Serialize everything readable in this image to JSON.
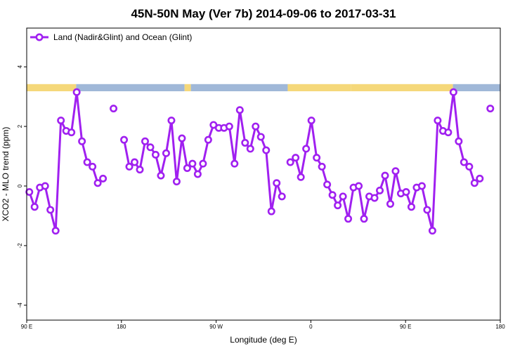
{
  "chart_data": {
    "type": "line",
    "title": "45N-50N May (Ver 7b)   2014-09-06 to 2017-03-31",
    "xlabel": "Longitude (deg E)",
    "ylabel": "XCO2 - MLO trend (ppm)",
    "xlim": [
      90,
      540
    ],
    "ylim": [
      -4.5,
      5.3
    ],
    "x_ticks": [
      {
        "value": 90,
        "label": "90 E"
      },
      {
        "value": 180,
        "label": "180"
      },
      {
        "value": 270,
        "label": "90 W"
      },
      {
        "value": 360,
        "label": "0"
      },
      {
        "value": 450,
        "label": "90 E"
      },
      {
        "value": 540,
        "label": "180"
      }
    ],
    "y_ticks": [
      {
        "value": -4,
        "label": "-4"
      },
      {
        "value": -2,
        "label": "-2"
      },
      {
        "value": 0,
        "label": "0"
      },
      {
        "value": 2,
        "label": "2"
      },
      {
        "value": 4,
        "label": "4"
      }
    ],
    "legend": {
      "position": "top-left",
      "label": "Land (Nadir&Glint) and Ocean (Glint)",
      "color": "#a020f0"
    },
    "colors": {
      "series": "#a020f0",
      "land": "#f5d87a",
      "ocean": "#a0b8d8"
    },
    "land_ocean_band": {
      "y_range": [
        3.18,
        3.42
      ]
    },
    "series": [
      {
        "name": "Land (Nadir&Glint) and Ocean (Glint)",
        "segments": [
          [
            [
              92.5,
              -0.2
            ],
            [
              97.5,
              -0.7
            ],
            [
              102.5,
              -0.05
            ],
            [
              107.5,
              0.0
            ],
            [
              112.5,
              -0.8
            ],
            [
              117.5,
              -1.5
            ],
            [
              122.5,
              2.2
            ],
            [
              127.5,
              1.85
            ],
            [
              132.5,
              1.8
            ],
            [
              137.5,
              3.15
            ],
            [
              142.5,
              1.5
            ],
            [
              147.5,
              0.8
            ],
            [
              152.5,
              0.65
            ],
            [
              157.5,
              0.1
            ],
            [
              162.5,
              0.25
            ]
          ],
          [
            [
              172.5,
              2.6
            ]
          ],
          [
            [
              182.5,
              1.55
            ],
            [
              187.5,
              0.65
            ],
            [
              192.5,
              0.8
            ],
            [
              197.5,
              0.55
            ],
            [
              202.5,
              1.5
            ],
            [
              207.5,
              1.3
            ],
            [
              212.5,
              1.05
            ],
            [
              217.5,
              0.35
            ],
            [
              222.5,
              1.1
            ],
            [
              227.5,
              2.2
            ],
            [
              232.5,
              0.15
            ],
            [
              237.5,
              1.6
            ],
            [
              242.5,
              0.6
            ],
            [
              247.5,
              0.75
            ],
            [
              252.5,
              0.4
            ],
            [
              257.5,
              0.75
            ],
            [
              262.5,
              1.55
            ],
            [
              267.5,
              2.05
            ],
            [
              272.5,
              1.95
            ],
            [
              277.5,
              1.95
            ],
            [
              282.5,
              2.0
            ],
            [
              287.5,
              0.75
            ],
            [
              292.5,
              2.55
            ],
            [
              297.5,
              1.45
            ],
            [
              302.5,
              1.25
            ],
            [
              307.5,
              2.0
            ],
            [
              312.5,
              1.65
            ],
            [
              317.5,
              1.2
            ],
            [
              322.5,
              -0.85
            ],
            [
              327.5,
              0.1
            ],
            [
              332.5,
              -0.35
            ]
          ],
          [
            [
              340.5,
              0.8
            ],
            [
              345.5,
              0.95
            ],
            [
              350.5,
              0.3
            ],
            [
              355.5,
              1.25
            ],
            [
              360.5,
              2.2
            ],
            [
              365.5,
              0.95
            ],
            [
              370.5,
              0.65
            ],
            [
              375.5,
              0.05
            ],
            [
              380.5,
              -0.3
            ],
            [
              385.5,
              -0.65
            ],
            [
              390.5,
              -0.35
            ],
            [
              395.5,
              -1.1
            ],
            [
              400.5,
              -0.05
            ],
            [
              405.5,
              0.0
            ],
            [
              410.5,
              -1.1
            ],
            [
              415.5,
              -0.35
            ],
            [
              420.5,
              -0.4
            ],
            [
              425.5,
              -0.15
            ],
            [
              430.5,
              0.35
            ],
            [
              435.5,
              -0.6
            ],
            [
              440.5,
              0.5
            ],
            [
              445.5,
              -0.25
            ],
            [
              450.5,
              -0.2
            ],
            [
              455.5,
              -0.7
            ],
            [
              460.5,
              -0.05
            ],
            [
              465.5,
              0.0
            ],
            [
              470.5,
              -0.8
            ],
            [
              475.5,
              -1.5
            ],
            [
              480.5,
              2.2
            ],
            [
              485.5,
              1.85
            ],
            [
              490.5,
              1.8
            ],
            [
              495.5,
              3.15
            ],
            [
              500.5,
              1.5
            ],
            [
              505.5,
              0.8
            ],
            [
              510.5,
              0.65
            ],
            [
              515.5,
              0.1
            ],
            [
              520.5,
              0.25
            ]
          ],
          [
            [
              530.5,
              2.6
            ]
          ]
        ]
      }
    ]
  }
}
